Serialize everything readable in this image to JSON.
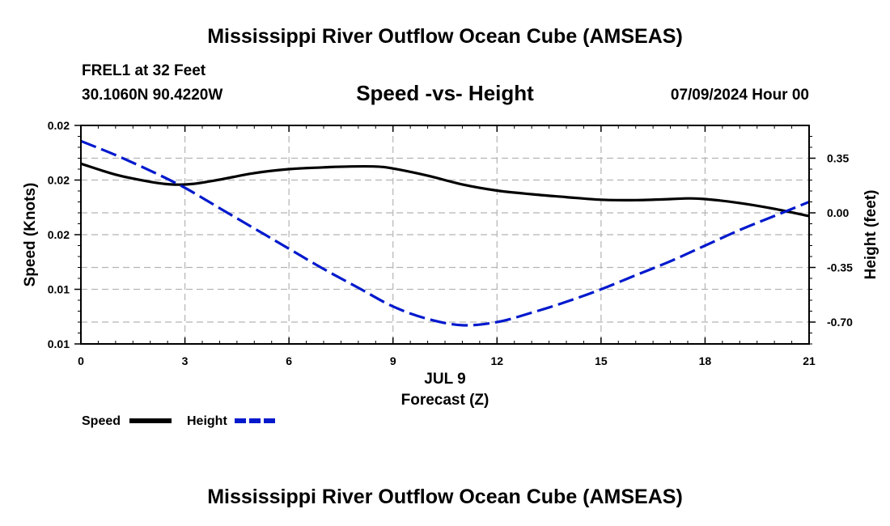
{
  "header": {
    "title": "Mississippi River Outflow Ocean Cube (AMSEAS)",
    "station": "FREL1 at 32 Feet",
    "coords": "30.1060N  90.4220W",
    "date": "07/09/2024 Hour 00"
  },
  "footer": {
    "title": "Mississippi River Outflow Ocean Cube (AMSEAS)"
  },
  "chart_data": {
    "type": "line",
    "title": "Speed -vs- Height",
    "xlabel": "Forecast (Z)",
    "xdate_label": "JUL 9",
    "ylabel": "Speed (Knots)",
    "y2label": "Height (feet)",
    "xlim": [
      0,
      21
    ],
    "x_ticks": [
      "0",
      "3",
      "6",
      "9",
      "12",
      "15",
      "18",
      "21"
    ],
    "ylim": [
      0.01,
      0.02
    ],
    "y_ticks": [
      "0.01",
      "0.01",
      "0.02",
      "0.02",
      "0.02"
    ],
    "y2lim": [
      -0.84,
      0.56
    ],
    "y2_ticks": [
      "0.35",
      "0.00",
      "-0.35",
      "-0.70"
    ],
    "grid": true,
    "legend_position": "bottom-left",
    "series": [
      {
        "name": "Speed",
        "axis": "left",
        "color": "#000000",
        "style": "solid",
        "x": [
          0,
          1,
          2,
          2.6,
          3.2,
          4,
          5,
          6,
          7,
          7.7,
          8.5,
          9,
          10,
          11,
          12,
          13,
          14,
          15,
          16,
          17,
          17.5,
          18,
          19,
          20,
          21
        ],
        "values": [
          0.01825,
          0.01775,
          0.01742,
          0.0173,
          0.01732,
          0.01752,
          0.01782,
          0.018,
          0.01808,
          0.01812,
          0.01812,
          0.01803,
          0.0177,
          0.0173,
          0.01702,
          0.01685,
          0.01672,
          0.0166,
          0.01658,
          0.01663,
          0.01666,
          0.01663,
          0.01645,
          0.01618,
          0.01585
        ]
      },
      {
        "name": "Height",
        "axis": "right",
        "color": "#0019cc",
        "style": "dashed",
        "x": [
          0,
          1,
          2,
          3,
          4,
          5,
          6,
          7,
          8,
          9,
          10,
          11,
          12,
          13,
          14,
          15,
          16,
          17,
          18,
          19,
          20,
          21
        ],
        "values": [
          0.46,
          0.37,
          0.27,
          0.16,
          0.03,
          -0.1,
          -0.23,
          -0.36,
          -0.48,
          -0.6,
          -0.68,
          -0.72,
          -0.7,
          -0.64,
          -0.57,
          -0.49,
          -0.4,
          -0.31,
          -0.21,
          -0.11,
          -0.02,
          0.07
        ]
      }
    ]
  }
}
